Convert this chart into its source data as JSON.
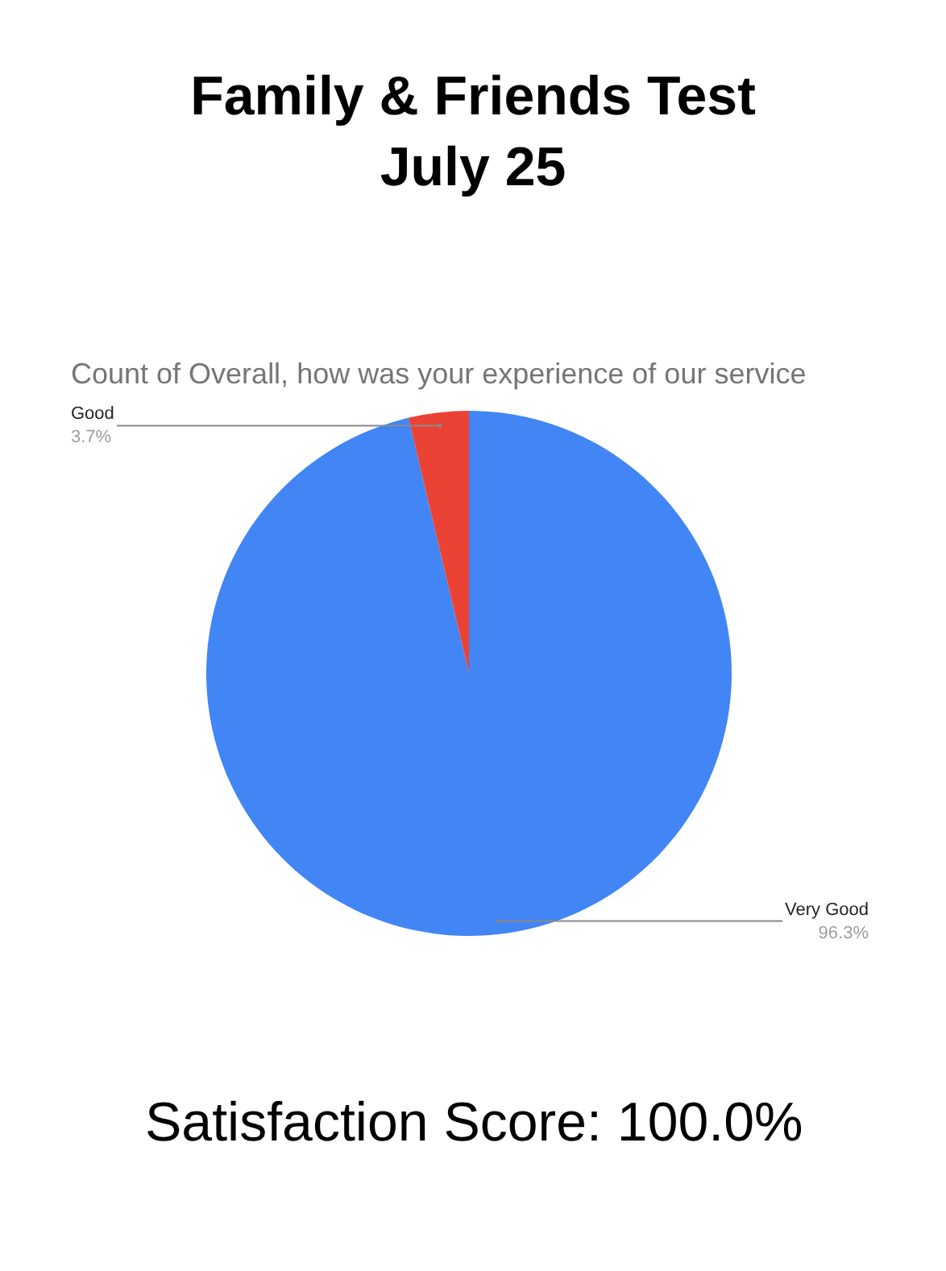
{
  "chart_data": {
    "type": "pie",
    "title": "Family & Friends Test\nJuly 25",
    "subtitle": "Count of Overall, how was your experience of our service",
    "categories": [
      "Very Good",
      "Good"
    ],
    "values": [
      96.3,
      3.7
    ],
    "colors": [
      "#4285f4",
      "#ea4335"
    ],
    "value_labels": [
      "96.3%",
      "3.7%"
    ],
    "annotations": [
      "Satisfaction Score: 100.0%"
    ],
    "legend": false
  }
}
